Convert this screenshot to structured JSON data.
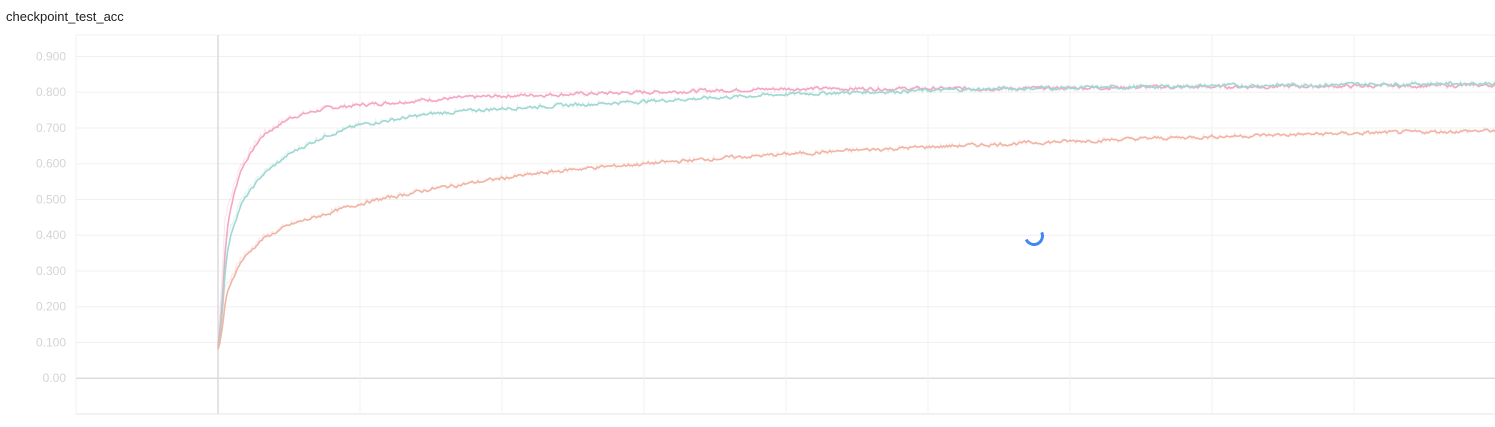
{
  "card": {
    "title": "checkpoint_test_acc"
  },
  "chart_data": {
    "type": "line",
    "ylim": [
      -0.1,
      0.96
    ],
    "xlim": [
      -1.0,
      9.0
    ],
    "yticks": [
      0.9,
      0.8,
      0.7,
      0.6,
      0.5,
      0.4,
      0.3,
      0.2,
      0.1,
      0.0
    ],
    "ytick_labels": [
      "0.900",
      "0.800",
      "0.700",
      "0.600",
      "0.500",
      "0.400",
      "0.300",
      "0.200",
      "0.100",
      "0.00"
    ],
    "xgrid": [
      0,
      1,
      2,
      3,
      4,
      5,
      6,
      7,
      8,
      9
    ],
    "grid": true,
    "legend": "none",
    "series": [
      {
        "color": "#f4a6c2",
        "x": [
          0,
          0.05,
          0.15,
          0.3,
          0.5,
          0.75,
          1.0,
          1.5,
          2.0,
          2.5,
          3.0,
          3.5,
          4.0,
          4.5,
          5.0,
          5.5,
          6.0,
          6.5,
          7.0,
          7.5,
          8.0,
          8.5,
          9.0
        ],
        "y": [
          0.09,
          0.45,
          0.59,
          0.68,
          0.73,
          0.755,
          0.765,
          0.78,
          0.79,
          0.795,
          0.8,
          0.805,
          0.81,
          0.81,
          0.81,
          0.81,
          0.812,
          0.814,
          0.815,
          0.816,
          0.817,
          0.818,
          0.82
        ]
      },
      {
        "color": "#9fd8d1",
        "x": [
          0,
          0.05,
          0.15,
          0.3,
          0.5,
          0.75,
          1.0,
          1.5,
          2.0,
          2.5,
          3.0,
          3.5,
          4.0,
          4.5,
          5.0,
          5.5,
          6.0,
          6.5,
          7.0,
          7.5,
          8.0,
          8.5,
          9.0
        ],
        "y": [
          0.08,
          0.38,
          0.49,
          0.57,
          0.63,
          0.68,
          0.71,
          0.74,
          0.755,
          0.765,
          0.775,
          0.785,
          0.795,
          0.8,
          0.805,
          0.81,
          0.812,
          0.815,
          0.818,
          0.82,
          0.822,
          0.824,
          0.825
        ]
      },
      {
        "color": "#f1b4a4",
        "x": [
          0,
          0.05,
          0.15,
          0.3,
          0.5,
          0.75,
          1.0,
          1.5,
          2.0,
          2.5,
          3.0,
          3.5,
          4.0,
          4.5,
          5.0,
          5.5,
          6.0,
          6.5,
          7.0,
          7.5,
          8.0,
          8.5,
          9.0
        ],
        "y": [
          0.08,
          0.25,
          0.33,
          0.39,
          0.43,
          0.46,
          0.49,
          0.53,
          0.56,
          0.585,
          0.6,
          0.615,
          0.627,
          0.638,
          0.647,
          0.655,
          0.663,
          0.67,
          0.676,
          0.681,
          0.685,
          0.689,
          0.693
        ]
      }
    ]
  }
}
